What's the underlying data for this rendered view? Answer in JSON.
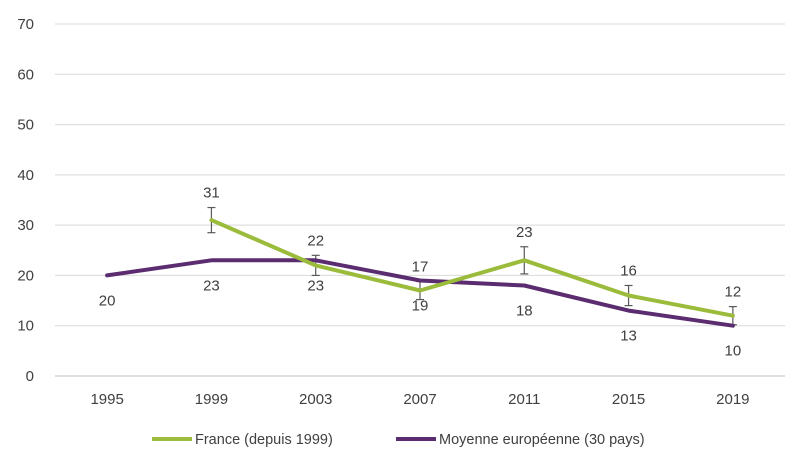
{
  "chart_data": {
    "type": "line",
    "title": "",
    "xlabel": "",
    "ylabel": "",
    "categories": [
      "1995",
      "1999",
      "2003",
      "2007",
      "2011",
      "2015",
      "2019"
    ],
    "ylim": [
      0,
      70
    ],
    "yticks": [
      0,
      10,
      20,
      30,
      40,
      50,
      60,
      70
    ],
    "grid": true,
    "legend_position": "bottom",
    "series": [
      {
        "name": "France (depuis 1999)",
        "color": "#9bbb3b",
        "values": [
          null,
          31,
          22,
          17,
          23,
          16,
          12
        ],
        "labels": [
          null,
          "31",
          "22",
          "17",
          "23",
          "16",
          "12"
        ],
        "error": [
          null,
          2.5,
          2,
          1.8,
          2.7,
          2,
          1.8
        ]
      },
      {
        "name": "Moyenne européenne (30 pays)",
        "color": "#5b2c6f",
        "values": [
          20,
          23,
          23,
          19,
          18,
          13,
          10
        ],
        "labels": [
          "20",
          "23",
          "23",
          "19",
          "18",
          "13",
          "10"
        ],
        "error": null
      }
    ]
  }
}
